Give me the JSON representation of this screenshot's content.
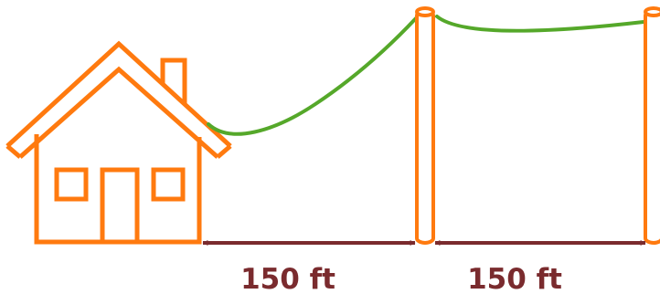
{
  "colors": {
    "structure": "#ff7a0f",
    "wire": "#55a82a",
    "dimension": "#7a2b2e",
    "background": "#ffffff"
  },
  "icons": {
    "house": "house-icon",
    "pole": "utility-pole",
    "wire": "power-wire",
    "dimension": "double-arrow"
  },
  "dimensions": [
    {
      "label": "150 ft"
    },
    {
      "label": "150 ft"
    }
  ]
}
